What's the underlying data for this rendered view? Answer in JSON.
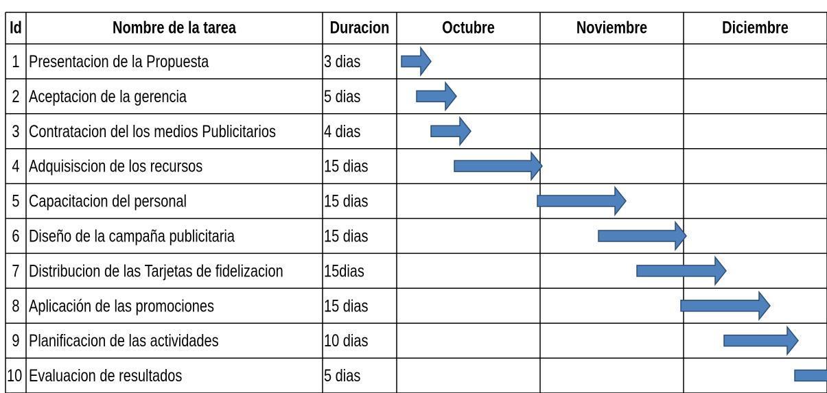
{
  "table": {
    "header": [
      "Id",
      "Nombre de la tarea",
      "Duracion",
      "Octubre",
      "Noviembre",
      "Diciembre"
    ],
    "rows": [
      [
        "1",
        "Presentacion de la Propuesta",
        "3 dias"
      ],
      [
        "2",
        "Aceptacion de la gerencia",
        "5 dias"
      ],
      [
        "3",
        "Contratacion del los medios Publicitarios",
        "4 dias"
      ],
      [
        "4",
        "Adquisiscion de los recursos",
        "15 dias"
      ],
      [
        "5",
        "Capacitacion del personal",
        "15 dias"
      ],
      [
        "6",
        "Diseño de la campaña publicitaria",
        "15 dias"
      ],
      [
        "7",
        "Distribucion de las Tarjetas de fidelizacion",
        "15dias"
      ],
      [
        "8",
        "Aplicación de las promociones",
        "15 dias"
      ],
      [
        "9",
        "Planificacion de las actividades",
        "10 dias"
      ],
      [
        "10",
        "Evaluacion de resultados",
        "5 dias"
      ]
    ]
  }
}
